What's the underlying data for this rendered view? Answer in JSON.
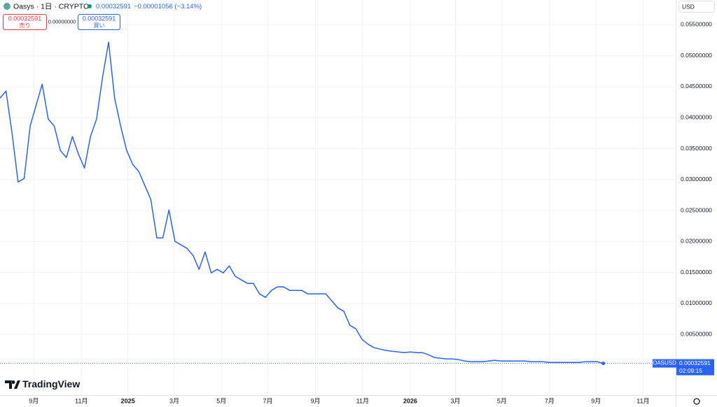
{
  "header": {
    "symbol": "Oasys · 1日 · CRYPTO",
    "price": "0.00032591",
    "change": "−0.00001056 (−3.14%)",
    "sell": {
      "price": "0.00032591",
      "label": "売り"
    },
    "spread": "0.00000000",
    "buy": {
      "price": "0.00032591",
      "label": "買い"
    }
  },
  "currency": "USD",
  "ticker": "OASUSD",
  "countdown": "02:09:15",
  "brand": "TradingView",
  "chart_data": {
    "type": "line",
    "color": "#2962ff",
    "grid": true,
    "values": [
      0.04316,
      0.04429,
      0.03752,
      0.02961,
      0.03018,
      0.03865,
      0.04204,
      0.04542,
      0.03978,
      0.03865,
      0.0347,
      0.03357,
      0.03695,
      0.03413,
      0.03187,
      0.03695,
      0.03978,
      0.04655,
      0.0522,
      0.04316,
      0.03865,
      0.0347,
      0.03244,
      0.03131,
      0.02905,
      0.02679,
      0.02058,
      0.02058,
      0.0251,
      0.02002,
      0.01946,
      0.01889,
      0.01776,
      0.0155,
      0.01833,
      0.01494,
      0.0155,
      0.01494,
      0.01607,
      0.01438,
      0.01381,
      0.01325,
      0.01325,
      0.01155,
      0.01099,
      0.01212,
      0.01268,
      0.01268,
      0.01212,
      0.01212,
      0.01212,
      0.01155,
      0.01155,
      0.01155,
      0.01155,
      0.01042,
      0.00929,
      0.00873,
      0.00647,
      0.00591,
      0.00421,
      0.00342,
      0.00286,
      0.00263,
      0.00241,
      0.00229,
      0.00218,
      0.00207,
      0.00218,
      0.00207,
      0.00207,
      0.00173,
      0.00128,
      0.00116,
      0.00105,
      0.00105,
      0.00094,
      0.00071,
      0.0006,
      0.0006,
      0.0006,
      0.00071,
      0.00082,
      0.00071,
      0.00071,
      0.00071,
      0.00071,
      0.00071,
      0.0006,
      0.0006,
      0.0006,
      0.00049,
      0.00049,
      0.00049,
      0.00049,
      0.00049,
      0.00049,
      0.0006,
      0.0006,
      0.0006,
      0.00032591
    ],
    "xlim": [
      0,
      112
    ],
    "xticks": [
      {
        "value": 5.6,
        "label": "9月"
      },
      {
        "value": 13.5,
        "label": "11月"
      },
      {
        "value": 21.2,
        "label": "2025"
      },
      {
        "value": 28.9,
        "label": "3月"
      },
      {
        "value": 36.7,
        "label": "5月"
      },
      {
        "value": 44.4,
        "label": "7月"
      },
      {
        "value": 52.3,
        "label": "9月"
      },
      {
        "value": 60.1,
        "label": "11月"
      },
      {
        "value": 68.0,
        "label": "2026"
      },
      {
        "value": 75.5,
        "label": "3月"
      },
      {
        "value": 83.2,
        "label": "5月"
      },
      {
        "value": 91.1,
        "label": "7月"
      },
      {
        "value": 98.8,
        "label": "9月"
      },
      {
        "value": 106.6,
        "label": "11月"
      }
    ],
    "ylim": [
      -0.0048,
      0.059
    ],
    "yticks": [
      {
        "value": 0.005,
        "label": "0.00500000"
      },
      {
        "value": 0.01,
        "label": "0.01000000"
      },
      {
        "value": 0.015,
        "label": "0.01500000"
      },
      {
        "value": 0.02,
        "label": "0.02000000"
      },
      {
        "value": 0.025,
        "label": "0.02500000"
      },
      {
        "value": 0.03,
        "label": "0.03000000"
      },
      {
        "value": 0.035,
        "label": "0.03500000"
      },
      {
        "value": 0.04,
        "label": "0.04000000"
      },
      {
        "value": 0.045,
        "label": "0.04500000"
      },
      {
        "value": 0.05,
        "label": "0.05000000"
      },
      {
        "value": 0.055,
        "label": "0.05500000"
      }
    ]
  }
}
